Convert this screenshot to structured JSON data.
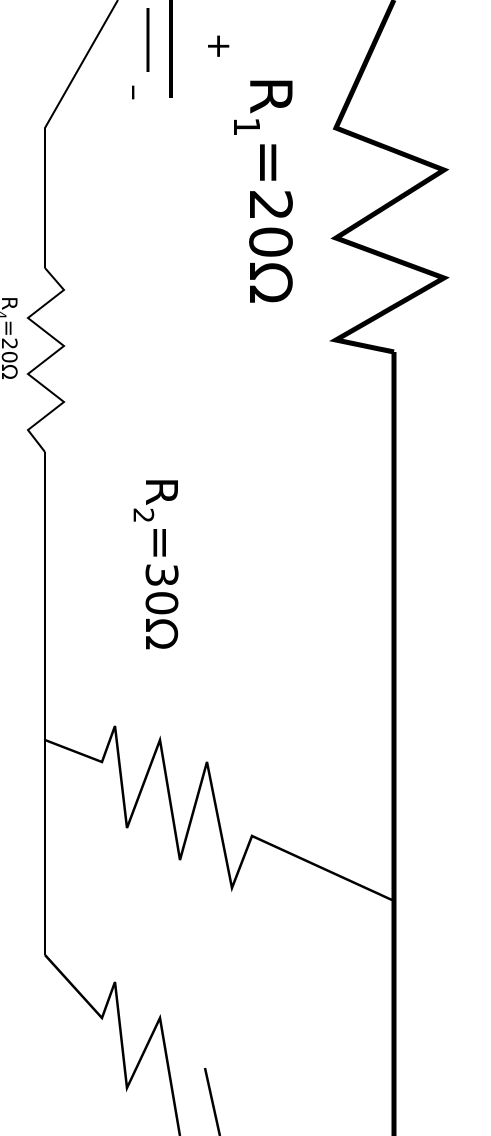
{
  "resistors": {
    "r1": {
      "name": "R",
      "sub": "1",
      "value": "=20Ω"
    },
    "r2": {
      "name": "R",
      "sub": "2",
      "value": "=30Ω"
    },
    "r4": {
      "name": "R",
      "sub": "4",
      "value": "=20Ω"
    }
  },
  "battery": {
    "plus": "+",
    "minus": "–"
  }
}
